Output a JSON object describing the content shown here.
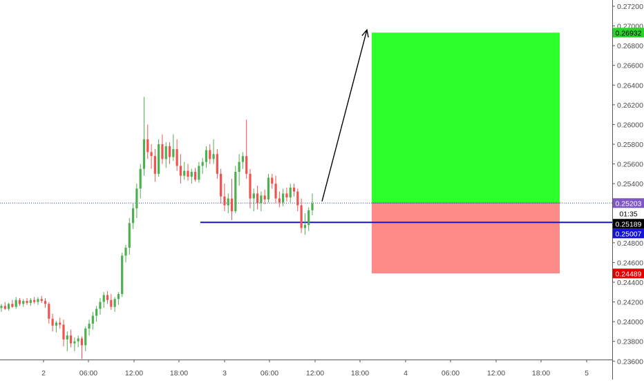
{
  "chart_data": {
    "type": "candlestick",
    "y_axis": {
      "position": "right",
      "ylim": [
        0.2355,
        0.2732
      ],
      "ticks": [
        "0.27200",
        "0.27000",
        "0.26800",
        "0.26600",
        "0.26400",
        "0.26200",
        "0.26000",
        "0.25800",
        "0.25600",
        "0.25400",
        "0.24800",
        "0.24600",
        "0.24400",
        "0.24200",
        "0.24000",
        "0.23800",
        "0.23600"
      ]
    },
    "x_axis": {
      "ticks": [
        "2",
        "06:00",
        "12:00",
        "18:00",
        "3",
        "06:00",
        "12:00",
        "18:00",
        "4",
        "06:00",
        "12:00",
        "18:00",
        "5"
      ]
    },
    "colors": {
      "up": "#4caf50",
      "down": "#ef5350",
      "target_zone": "#2dff2d",
      "stop_zone": "#ff8a8a",
      "entry_line": "#1414d2",
      "last_price_line": "#3f51b5",
      "axis_line": "#555555",
      "tick_text": "#4a4a4a"
    },
    "candles": [
      [
        0.2414,
        0.2418,
        0.241,
        0.2416
      ],
      [
        0.2416,
        0.242,
        0.2412,
        0.2413
      ],
      [
        0.2413,
        0.2419,
        0.2411,
        0.2418
      ],
      [
        0.2418,
        0.2422,
        0.2414,
        0.2415
      ],
      [
        0.2415,
        0.2425,
        0.2413,
        0.2422
      ],
      [
        0.2422,
        0.2424,
        0.2416,
        0.2418
      ],
      [
        0.2418,
        0.2423,
        0.2415,
        0.2421
      ],
      [
        0.2421,
        0.2424,
        0.2417,
        0.2419
      ],
      [
        0.2419,
        0.2424,
        0.2416,
        0.2422
      ],
      [
        0.2422,
        0.2425,
        0.2418,
        0.242
      ],
      [
        0.242,
        0.2425,
        0.2417,
        0.2423
      ],
      [
        0.2423,
        0.2426,
        0.2419,
        0.2421
      ],
      [
        0.2421,
        0.2424,
        0.2414,
        0.2418
      ],
      [
        0.2418,
        0.242,
        0.2398,
        0.2403
      ],
      [
        0.2403,
        0.2408,
        0.239,
        0.2396
      ],
      [
        0.2396,
        0.2401,
        0.2389,
        0.2399
      ],
      [
        0.2399,
        0.2404,
        0.2393,
        0.2397
      ],
      [
        0.2397,
        0.2402,
        0.2375,
        0.2382
      ],
      [
        0.2382,
        0.239,
        0.237,
        0.2386
      ],
      [
        0.2386,
        0.2392,
        0.2374,
        0.2378
      ],
      [
        0.2378,
        0.2384,
        0.237,
        0.238
      ],
      [
        0.238,
        0.2386,
        0.2374,
        0.2383
      ],
      [
        0.2383,
        0.2385,
        0.2362,
        0.2376
      ],
      [
        0.2376,
        0.2395,
        0.237,
        0.2393
      ],
      [
        0.2393,
        0.2402,
        0.2386,
        0.2398
      ],
      [
        0.2398,
        0.241,
        0.2392,
        0.2406
      ],
      [
        0.2406,
        0.2416,
        0.24,
        0.2413
      ],
      [
        0.2413,
        0.2424,
        0.2407,
        0.242
      ],
      [
        0.242,
        0.243,
        0.2414,
        0.2427
      ],
      [
        0.2427,
        0.2431,
        0.2418,
        0.2422
      ],
      [
        0.2422,
        0.2428,
        0.2412,
        0.2415
      ],
      [
        0.2415,
        0.2425,
        0.241,
        0.2423
      ],
      [
        0.2423,
        0.243,
        0.2417,
        0.2428
      ],
      [
        0.2428,
        0.247,
        0.2425,
        0.2467
      ],
      [
        0.2467,
        0.2478,
        0.246,
        0.2475
      ],
      [
        0.2475,
        0.2505,
        0.2468,
        0.25
      ],
      [
        0.25,
        0.252,
        0.2494,
        0.2515
      ],
      [
        0.2515,
        0.254,
        0.2505,
        0.2535
      ],
      [
        0.2535,
        0.256,
        0.2525,
        0.2555
      ],
      [
        0.2555,
        0.2628,
        0.2548,
        0.2585
      ],
      [
        0.2585,
        0.26,
        0.2565,
        0.2572
      ],
      [
        0.2572,
        0.258,
        0.2555,
        0.2568
      ],
      [
        0.2568,
        0.2575,
        0.2542,
        0.255
      ],
      [
        0.255,
        0.2585,
        0.2547,
        0.258
      ],
      [
        0.258,
        0.259,
        0.256,
        0.2565
      ],
      [
        0.2565,
        0.2582,
        0.2556,
        0.2578
      ],
      [
        0.2578,
        0.2582,
        0.256,
        0.2567
      ],
      [
        0.2567,
        0.259,
        0.2563,
        0.2575
      ],
      [
        0.2575,
        0.2585,
        0.2553,
        0.2558
      ],
      [
        0.2558,
        0.257,
        0.254,
        0.2548
      ],
      [
        0.2548,
        0.2562,
        0.2544,
        0.2553
      ],
      [
        0.2553,
        0.256,
        0.2543,
        0.2547
      ],
      [
        0.2547,
        0.2555,
        0.254,
        0.2552
      ],
      [
        0.2552,
        0.2556,
        0.2542,
        0.2544
      ],
      [
        0.2544,
        0.2562,
        0.2541,
        0.2558
      ],
      [
        0.2558,
        0.2566,
        0.255,
        0.2562
      ],
      [
        0.2562,
        0.2578,
        0.2556,
        0.2574
      ],
      [
        0.2574,
        0.258,
        0.256,
        0.2565
      ],
      [
        0.2565,
        0.2585,
        0.256,
        0.257
      ],
      [
        0.257,
        0.2575,
        0.2545,
        0.255
      ],
      [
        0.255,
        0.2555,
        0.252,
        0.2527
      ],
      [
        0.2527,
        0.254,
        0.2512,
        0.2518
      ],
      [
        0.2518,
        0.253,
        0.251,
        0.2525
      ],
      [
        0.2525,
        0.2545,
        0.2503,
        0.2512
      ],
      [
        0.2512,
        0.2558,
        0.251,
        0.2552
      ],
      [
        0.2552,
        0.257,
        0.2538,
        0.2562
      ],
      [
        0.2562,
        0.2572,
        0.2555,
        0.2568
      ],
      [
        0.2568,
        0.2605,
        0.2545,
        0.255
      ],
      [
        0.255,
        0.2555,
        0.2515,
        0.2525
      ],
      [
        0.2525,
        0.2535,
        0.2512,
        0.253
      ],
      [
        0.253,
        0.2538,
        0.2514,
        0.252
      ],
      [
        0.252,
        0.2532,
        0.2512,
        0.2528
      ],
      [
        0.2528,
        0.2534,
        0.2519,
        0.2524
      ],
      [
        0.2524,
        0.255,
        0.2521,
        0.2546
      ],
      [
        0.2546,
        0.255,
        0.2535,
        0.254
      ],
      [
        0.254,
        0.2548,
        0.252,
        0.2525
      ],
      [
        0.2525,
        0.2532,
        0.2516,
        0.2521
      ],
      [
        0.2521,
        0.2535,
        0.2517,
        0.253
      ],
      [
        0.253,
        0.2536,
        0.2522,
        0.2526
      ],
      [
        0.2526,
        0.254,
        0.2521,
        0.2536
      ],
      [
        0.2536,
        0.254,
        0.2527,
        0.2532
      ],
      [
        0.2532,
        0.2535,
        0.2512,
        0.2518
      ],
      [
        0.2518,
        0.2525,
        0.249,
        0.2495
      ],
      [
        0.2495,
        0.251,
        0.2488,
        0.2498
      ],
      [
        0.2498,
        0.2516,
        0.2492,
        0.2513
      ],
      [
        0.2513,
        0.253,
        0.2508,
        0.252
      ]
    ],
    "chart_drawings": [
      {
        "type": "position_zone",
        "role": "target",
        "from": 0.25203,
        "to": 0.26932
      },
      {
        "type": "position_zone",
        "role": "stop",
        "from": 0.24489,
        "to": 0.25203
      },
      {
        "type": "horizontal_line",
        "role": "entry",
        "value": 0.25007
      },
      {
        "type": "horizontal_line",
        "role": "last-price",
        "value": 0.25203,
        "style": "dotted"
      },
      {
        "type": "arrow",
        "from_value": 0.2522,
        "to_value": 0.2696
      }
    ],
    "price_labels": [
      {
        "role": "target",
        "text": "0.26932",
        "background": "#2dd12d",
        "text_color": "#000000"
      },
      {
        "role": "last-price",
        "text": "0.25203",
        "background": "#7e57c2",
        "text_color": "#ffffff"
      },
      {
        "role": "countdown",
        "text": "01:35",
        "background": "#ffffff",
        "text_color": "#000000"
      },
      {
        "role": "current",
        "text": "0.25189",
        "background": "#000000",
        "text_color": "#ffffff"
      },
      {
        "role": "entry",
        "text": "0.25007",
        "background": "#1414d2",
        "text_color": "#ffffff"
      },
      {
        "role": "stop",
        "text": "0.24489",
        "background": "#e30000",
        "text_color": "#ffffff"
      }
    ]
  }
}
